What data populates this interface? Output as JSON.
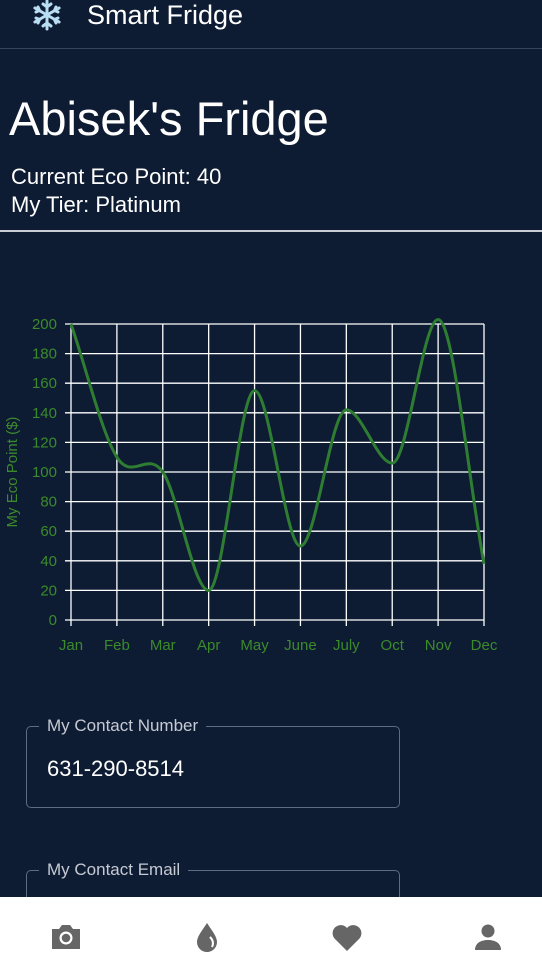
{
  "app": {
    "title": "Smart Fridge",
    "logo_icon": "snowflake-icon"
  },
  "profile": {
    "heading": "Abisek's Fridge",
    "eco_point_text": "Current Eco Point: 40",
    "tier_text": "My Tier: Platinum"
  },
  "chart_data": {
    "type": "line",
    "categories": [
      "Jan",
      "Feb",
      "Mar",
      "Apr",
      "May",
      "June",
      "July",
      "Oct",
      "Nov",
      "Dec"
    ],
    "values": [
      200,
      110,
      100,
      20,
      155,
      50,
      142,
      106,
      203,
      38
    ],
    "ylabel": "My Eco Point ($)",
    "xlabel": "",
    "ylim": [
      0,
      200
    ],
    "yticks": [
      0,
      20,
      40,
      60,
      80,
      100,
      120,
      140,
      160,
      180,
      200
    ],
    "grid": true,
    "smooth": true,
    "color": "#2e7d32",
    "grid_color": "#ffffff",
    "label_color": "#3b8a2b"
  },
  "contact": {
    "number_label": "My Contact Number",
    "number_value": "631-290-8514",
    "email_label": "My Contact Email"
  },
  "tabs": [
    {
      "name": "camera",
      "icon": "camera-icon"
    },
    {
      "name": "eco",
      "icon": "drop-icon"
    },
    {
      "name": "favorites",
      "icon": "heart-icon"
    },
    {
      "name": "profile",
      "icon": "person-icon"
    }
  ],
  "colors": {
    "background": "#0e1c33",
    "tabbar": "#ffffff",
    "tab_icon": "#666666"
  }
}
